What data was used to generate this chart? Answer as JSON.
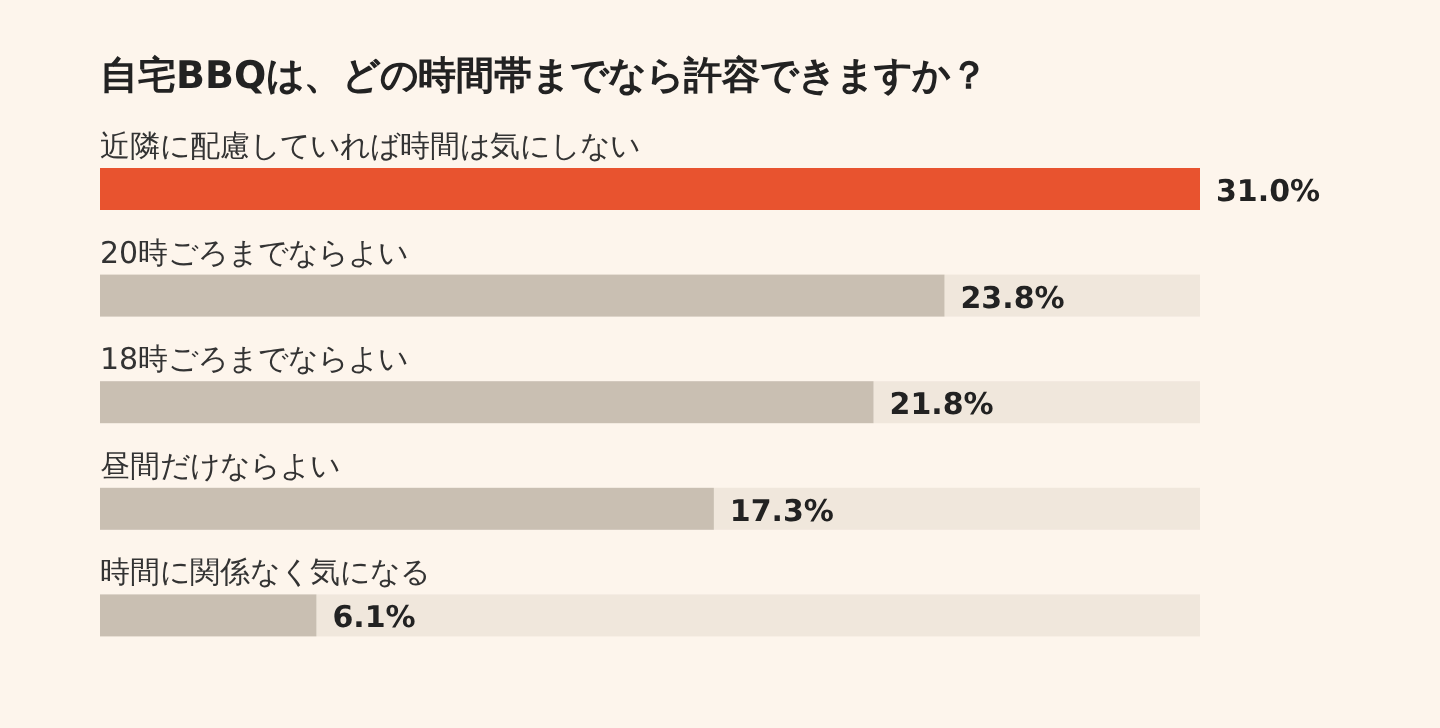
{
  "chart_data": {
    "type": "bar",
    "orientation": "horizontal",
    "title": "自宅BBQは、どの時間帯までなら許容できますか？",
    "categories": [
      "近隣に配慮していれば時間は気にしない",
      "20時ごろまでならよい",
      "18時ごろまでならよい",
      "昼間だけならよい",
      "時間に関係なく気になる"
    ],
    "values": [
      31.0,
      23.8,
      21.8,
      17.3,
      6.1
    ],
    "value_labels": [
      "31.0%",
      "23.8%",
      "21.8%",
      "17.3%",
      "6.1%"
    ],
    "colors": [
      "#e8532f",
      "#c9bfb2",
      "#c9bfb2",
      "#c9bfb2",
      "#c9bfb2"
    ]
  }
}
